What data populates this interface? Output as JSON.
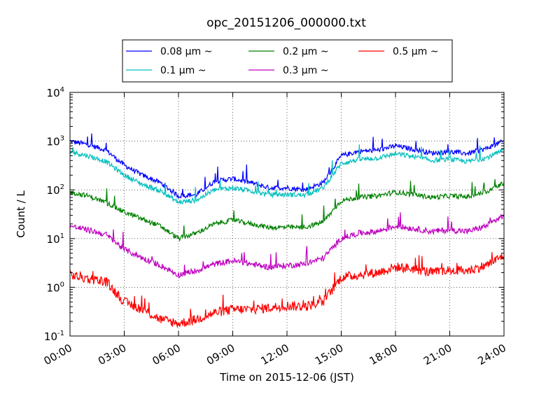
{
  "chart_data": {
    "type": "line",
    "title": "opc_20151206_000000.txt",
    "xlabel": "Time on 2015-12-06 (JST)",
    "ylabel": "Count / L",
    "yscale": "log",
    "xlim": [
      "00:00",
      "24:00"
    ],
    "ylim": [
      0.1,
      10000
    ],
    "grid": true,
    "legend": "top-center",
    "x_ticks": [
      "00:00",
      "03:00",
      "06:00",
      "09:00",
      "12:00",
      "15:00",
      "18:00",
      "21:00",
      "24:00"
    ],
    "y_ticks": [
      {
        "value": 0.1,
        "base": "10",
        "exp": "-1"
      },
      {
        "value": 1,
        "base": "10",
        "exp": "0"
      },
      {
        "value": 10,
        "base": "10",
        "exp": "1"
      },
      {
        "value": 100,
        "base": "10",
        "exp": "2"
      },
      {
        "value": 1000,
        "base": "10",
        "exp": "3"
      },
      {
        "value": 10000,
        "base": "10",
        "exp": "4"
      }
    ],
    "x": [
      "00:00",
      "01:00",
      "02:00",
      "03:00",
      "04:00",
      "05:00",
      "06:00",
      "07:00",
      "08:00",
      "09:00",
      "10:00",
      "11:00",
      "12:00",
      "13:00",
      "14:00",
      "15:00",
      "16:00",
      "17:00",
      "18:00",
      "19:00",
      "20:00",
      "21:00",
      "22:00",
      "23:00",
      "24:00"
    ],
    "series": [
      {
        "name": "0.08 μm ~",
        "color": "#0000ff",
        "values": [
          1000,
          850,
          650,
          320,
          200,
          140,
          75,
          80,
          150,
          170,
          140,
          110,
          110,
          100,
          140,
          500,
          620,
          650,
          800,
          680,
          570,
          600,
          560,
          700,
          1000
        ]
      },
      {
        "name": "0.1 μm ~",
        "color": "#00bfbf",
        "values": [
          600,
          500,
          380,
          200,
          130,
          95,
          55,
          62,
          100,
          110,
          95,
          80,
          80,
          78,
          110,
          350,
          420,
          450,
          550,
          480,
          400,
          420,
          380,
          450,
          650
        ]
      },
      {
        "name": "0.2 μm ~",
        "color": "#008000",
        "values": [
          90,
          75,
          55,
          35,
          25,
          18,
          10,
          13,
          20,
          24,
          20,
          17,
          17,
          17,
          22,
          60,
          70,
          75,
          90,
          80,
          70,
          75,
          72,
          90,
          140
        ]
      },
      {
        "name": "0.3 μm ~",
        "color": "#bf00bf",
        "values": [
          18,
          15,
          12,
          6,
          4,
          2.8,
          1.8,
          2.2,
          3,
          3.5,
          3,
          2.6,
          2.8,
          3,
          4,
          10,
          13,
          14,
          18,
          16,
          14,
          15,
          14,
          18,
          30
        ]
      },
      {
        "name": "0.5 μm ~",
        "color": "#ff0000",
        "values": [
          1.8,
          1.5,
          1.3,
          0.5,
          0.35,
          0.22,
          0.18,
          0.22,
          0.3,
          0.35,
          0.35,
          0.38,
          0.42,
          0.4,
          0.5,
          1.6,
          1.8,
          2.0,
          2.6,
          2.4,
          2.0,
          2.2,
          2.2,
          2.8,
          4.5
        ]
      }
    ]
  }
}
